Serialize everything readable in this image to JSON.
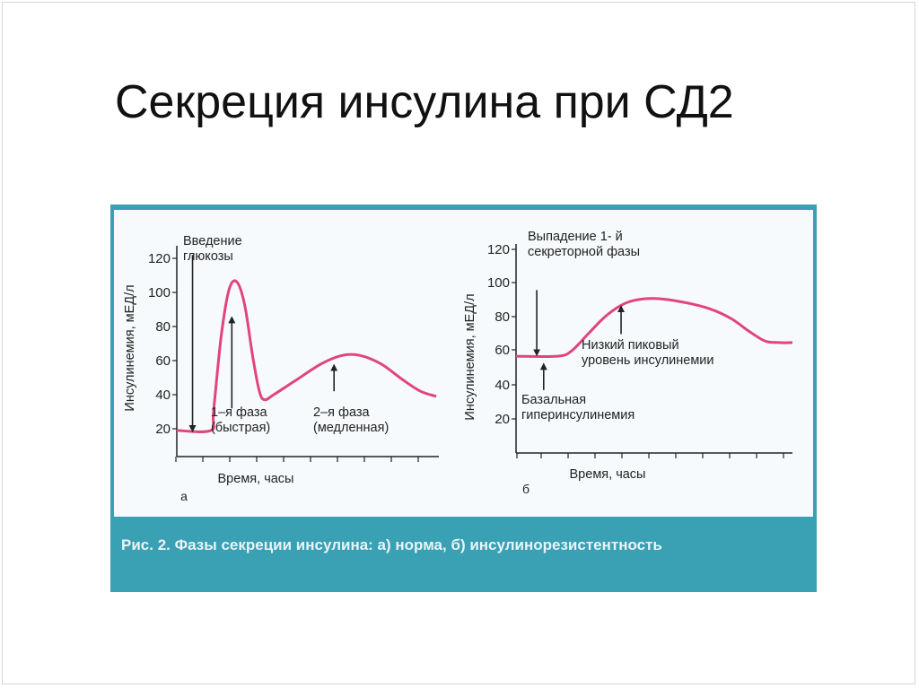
{
  "slide": {
    "title": "Секреция инсулина при СД2"
  },
  "figure": {
    "caption": "Рис. 2. Фазы секреции инсулина: а) норма, б) инсулинорезистентность",
    "accent_color": "#3aa0b4",
    "curve_color": "#e0457b"
  },
  "chart_data": [
    {
      "type": "line",
      "panel": "а",
      "ylabel": "Инсулинемия, мЕД/л",
      "xlabel": "Время, часы",
      "yticks": [
        "20",
        "40",
        "60",
        "80",
        "100",
        "120"
      ],
      "ylim": [
        10,
        125
      ],
      "xlim": [
        0,
        10
      ],
      "series": [
        {
          "points": [
            [
              0,
              19
            ],
            [
              1.3,
              19
            ],
            [
              1.4,
              30
            ],
            [
              1.7,
              75
            ],
            [
              2.0,
              102
            ],
            [
              2.3,
              106
            ],
            [
              2.6,
              92
            ],
            [
              2.9,
              62
            ],
            [
              3.15,
              42
            ],
            [
              3.35,
              37
            ],
            [
              3.7,
              40
            ],
            [
              4.5,
              48
            ],
            [
              5.5,
              58
            ],
            [
              6.3,
              63
            ],
            [
              7.0,
              63
            ],
            [
              7.8,
              58
            ],
            [
              8.6,
              49
            ],
            [
              9.3,
              42
            ],
            [
              9.9,
              39
            ]
          ]
        }
      ],
      "annotations": [
        {
          "text": [
            "Введение",
            "глюкозы"
          ],
          "arrow_x": 0.6,
          "arrow_from_y": 122,
          "arrow_to_y": 20
        },
        {
          "text": [
            "1–я фаза",
            "(быстрая)"
          ],
          "arrow_x": 2.1,
          "arrow_from_y": 32,
          "arrow_to_y": 84
        },
        {
          "text": [
            "2–я фаза",
            "(медленная)"
          ],
          "arrow_x": 6.0,
          "arrow_from_y": 42,
          "arrow_to_y": 56
        }
      ],
      "grid": false
    },
    {
      "type": "line",
      "panel": "б",
      "ylabel": "Инсулинемия, мЕД/л",
      "xlabel": "Время, часы",
      "yticks": [
        "20",
        "40",
        "60",
        "80",
        "100",
        "120"
      ],
      "ylim": [
        10,
        125
      ],
      "xlim": [
        0,
        10
      ],
      "series": [
        {
          "points": [
            [
              0,
              57
            ],
            [
              1.5,
              57
            ],
            [
              2.0,
              60
            ],
            [
              2.6,
              70
            ],
            [
              3.2,
              80
            ],
            [
              3.8,
              87
            ],
            [
              4.3,
              90
            ],
            [
              5.0,
              91
            ],
            [
              6.0,
              89
            ],
            [
              7.0,
              85
            ],
            [
              7.8,
              79
            ],
            [
              8.4,
              72
            ],
            [
              9.0,
              66
            ],
            [
              9.5,
              65
            ],
            [
              10,
              65
            ]
          ]
        }
      ],
      "annotations": [
        {
          "text": [
            "Выпадение 1- й",
            "секреторной фазы"
          ],
          "arrow_x": 0.75,
          "arrow_from_y": 96,
          "arrow_to_y": 59
        },
        {
          "text": [
            "Низкий пиковый",
            "уровень инсулинемии"
          ],
          "arrow_x": 3.8,
          "arrow_from_y": 70,
          "arrow_to_y": 85
        },
        {
          "text": [
            "Базальная",
            "гиперинсулинемия"
          ],
          "arrow_x": 1.0,
          "arrow_from_y": 37,
          "arrow_to_y": 51
        }
      ],
      "grid": false
    }
  ]
}
